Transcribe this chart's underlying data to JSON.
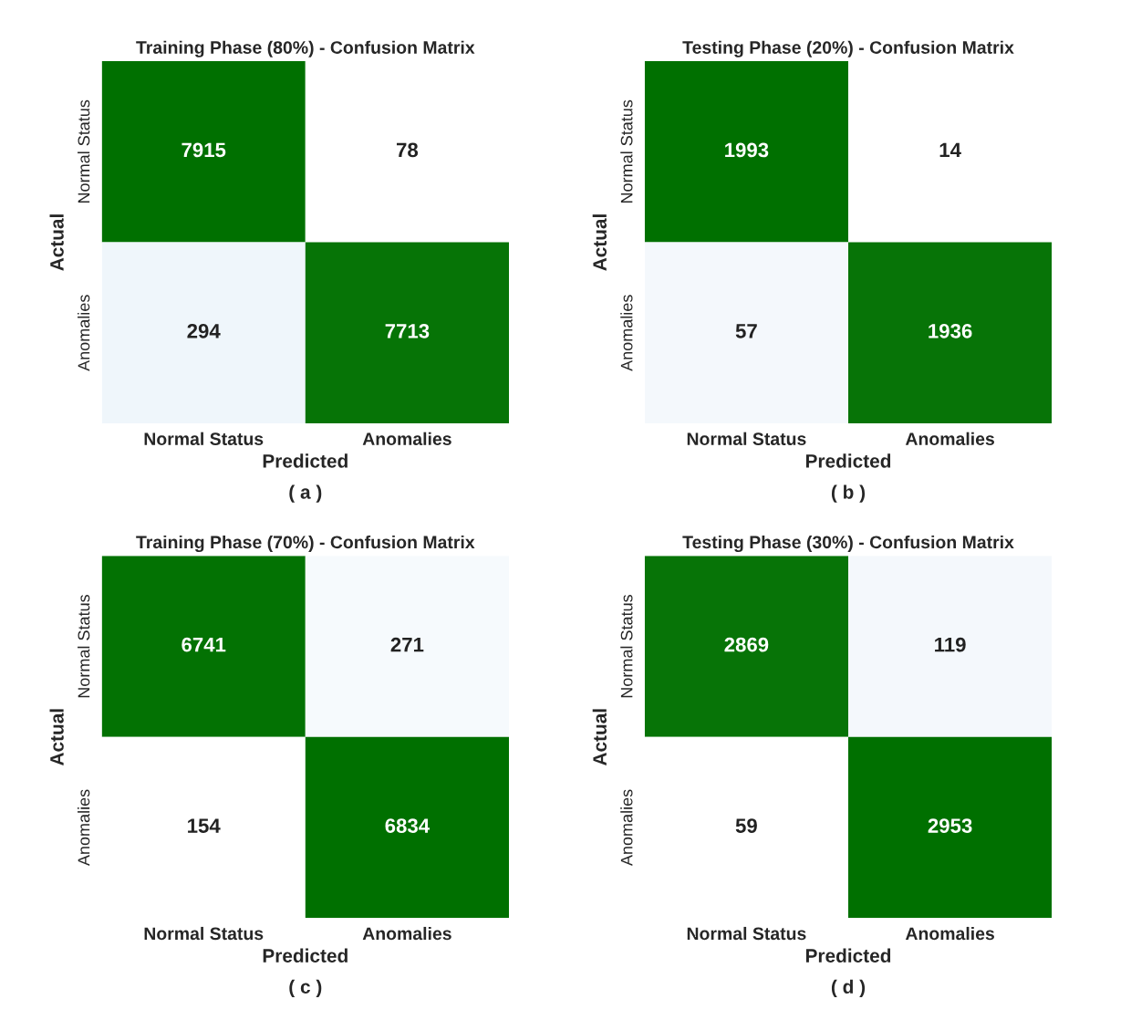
{
  "chart_data": [
    {
      "type": "heatmap",
      "title": "Training Phase (80%) - Confusion Matrix",
      "xlabel": "Predicted",
      "ylabel": "Actual",
      "categories": [
        "Normal Status",
        "Anomalies"
      ],
      "y_categories": [
        "Normal Status",
        "Anomalies"
      ],
      "cells": [
        [
          7915,
          78
        ],
        [
          294,
          7713
        ]
      ],
      "data_labels": true,
      "annotations": [
        "( a )"
      ]
    },
    {
      "type": "heatmap",
      "title": "Testing Phase (20%) - Confusion Matrix",
      "xlabel": "Predicted",
      "ylabel": "Actual",
      "categories": [
        "Normal Status",
        "Anomalies"
      ],
      "y_categories": [
        "Normal Status",
        "Anomalies"
      ],
      "cells": [
        [
          1993,
          14
        ],
        [
          57,
          1936
        ]
      ],
      "data_labels": true,
      "annotations": [
        "( b )"
      ]
    },
    {
      "type": "heatmap",
      "title": "Training Phase (70%) - Confusion Matrix",
      "xlabel": "Predicted",
      "ylabel": "Actual",
      "categories": [
        "Normal Status",
        "Anomalies"
      ],
      "y_categories": [
        "Normal Status",
        "Anomalies"
      ],
      "cells": [
        [
          6741,
          271
        ],
        [
          154,
          6834
        ]
      ],
      "data_labels": true,
      "annotations": [
        "( c )"
      ]
    },
    {
      "type": "heatmap",
      "title": "Testing Phase (30%) - Confusion Matrix",
      "xlabel": "Predicted",
      "ylabel": "Actual",
      "categories": [
        "Normal Status",
        "Anomalies"
      ],
      "y_categories": [
        "Normal Status",
        "Anomalies"
      ],
      "cells": [
        [
          2869,
          119
        ],
        [
          59,
          2953
        ]
      ],
      "data_labels": true,
      "annotations": [
        "( d )"
      ]
    }
  ]
}
